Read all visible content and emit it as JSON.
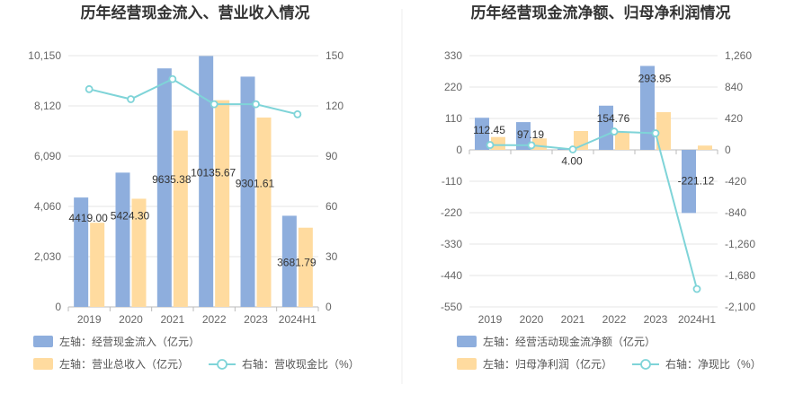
{
  "colors": {
    "bar_primary": "#8eaedd",
    "bar_secondary": "#ffdb9f",
    "line": "#7fd4d8",
    "grid": "#e6e6e6",
    "divider": "#eeeeee"
  },
  "chart_data": [
    {
      "type": "bar",
      "title": "历年经营现金流入、营业收入情况",
      "categories": [
        "2019",
        "2020",
        "2021",
        "2022",
        "2023",
        "2024H1"
      ],
      "left_axis": {
        "ticks": [
          "0",
          "2,030",
          "4,060",
          "6,090",
          "8,120",
          "10,150"
        ],
        "ylim": [
          0,
          10150
        ]
      },
      "right_axis": {
        "ticks": [
          "0",
          "30",
          "60",
          "90",
          "120",
          "150"
        ],
        "ylim": [
          0,
          150
        ]
      },
      "series": [
        {
          "name": "左轴：经营现金流入（亿元）",
          "axis": "left",
          "kind": "bar",
          "values": [
            4419.0,
            5424.3,
            9635.38,
            10135.67,
            9301.61,
            3681.79
          ],
          "labels": [
            "4419.00",
            "5424.30",
            "9635.38",
            "10135.67",
            "9301.61",
            "3681.79"
          ]
        },
        {
          "name": "左轴：营业总收入（亿元）",
          "axis": "left",
          "kind": "bar",
          "values": [
            3400,
            4370,
            7120,
            8350,
            7650,
            3200
          ]
        },
        {
          "name": "右轴：营收现金比（%）",
          "axis": "right",
          "kind": "line",
          "values": [
            130,
            124,
            136,
            121,
            121,
            115
          ]
        }
      ],
      "legend_placement": "bottom-left",
      "grid": true
    },
    {
      "type": "bar",
      "title": "历年经营现金流净额、归母净利润情况",
      "categories": [
        "2019",
        "2020",
        "2021",
        "2022",
        "2023",
        "2024H1"
      ],
      "left_axis": {
        "ticks": [
          "-550",
          "-440",
          "-330",
          "-220",
          "-110",
          "0",
          "110",
          "220",
          "330"
        ],
        "ylim": [
          -550,
          330
        ]
      },
      "right_axis": {
        "ticks": [
          "-2,100",
          "-1,680",
          "-1,260",
          "-840",
          "-420",
          "0",
          "420",
          "840",
          "1,260"
        ],
        "ylim": [
          -2100,
          1260
        ]
      },
      "series": [
        {
          "name": "左轴：经营活动现金流净额（亿元）",
          "axis": "left",
          "kind": "bar",
          "values": [
            112.45,
            97.19,
            4.0,
            154.76,
            293.95,
            -221.12
          ],
          "labels": [
            "112.45",
            "97.19",
            "4.00",
            "154.76",
            "293.95",
            "-221.12"
          ]
        },
        {
          "name": "左轴：归母净利润（亿元）",
          "axis": "left",
          "kind": "bar",
          "values": [
            45,
            40,
            66,
            63,
            132,
            15
          ]
        },
        {
          "name": "右轴：净现比（%）",
          "axis": "right",
          "kind": "line",
          "values": [
            65,
            61,
            6,
            245,
            222,
            -1860
          ]
        }
      ],
      "legend_placement": "bottom-left",
      "grid": true
    }
  ]
}
